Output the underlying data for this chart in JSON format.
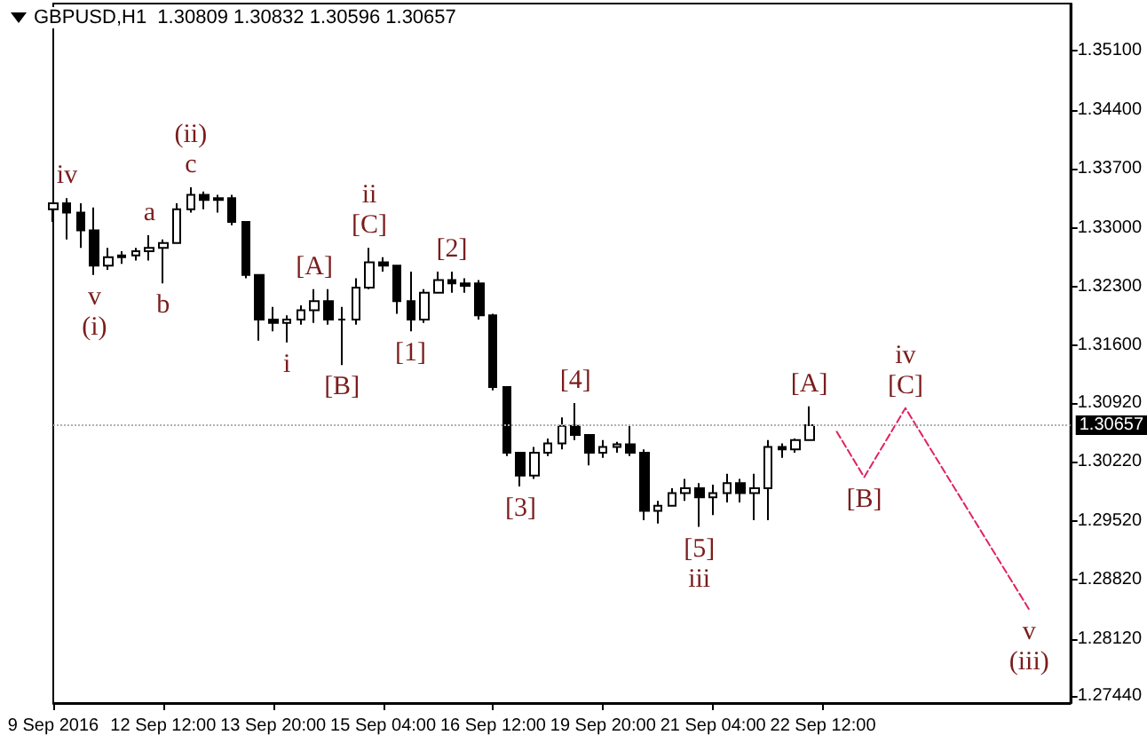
{
  "chart_data": {
    "type": "candlestick",
    "title": "GBPUSD,H1  1.30809 1.30832 1.30596 1.30657",
    "categories": [
      "9 Sep 2016",
      null,
      null,
      null,
      null,
      null,
      null,
      null,
      "12 Sep 12:00",
      null,
      null,
      null,
      null,
      null,
      null,
      null,
      "13 Sep 20:00",
      null,
      null,
      null,
      null,
      null,
      null,
      null,
      "15 Sep 04:00",
      null,
      null,
      null,
      null,
      null,
      null,
      null,
      "16 Sep 12:00",
      null,
      null,
      null,
      null,
      null,
      null,
      null,
      "19 Sep 20:00",
      null,
      null,
      null,
      null,
      null,
      null,
      null,
      "21 Sep 04:00",
      null,
      null,
      null,
      null,
      null,
      null,
      null,
      "22 Sep 12:00",
      null,
      null,
      null,
      null,
      null,
      null,
      null,
      null,
      null,
      null,
      null,
      null,
      null,
      null,
      null,
      null,
      null,
      null
    ],
    "series": [
      {
        "type": "candlestick",
        "color": "#000000",
        "ohlc": [
          [
            1.3322,
            1.3329,
            1.3307,
            1.3329
          ],
          [
            1.3329,
            1.3335,
            1.3286,
            1.3318
          ],
          [
            1.3318,
            1.3329,
            1.3276,
            1.3297
          ],
          [
            1.3297,
            1.3324,
            1.3244,
            1.3255
          ],
          [
            1.3255,
            1.3276,
            1.325,
            1.3265
          ],
          [
            1.3265,
            1.3272,
            1.3257,
            1.3267
          ],
          [
            1.3267,
            1.3276,
            1.3261,
            1.3272
          ],
          [
            1.3272,
            1.3291,
            1.3261,
            1.3276
          ],
          [
            1.3276,
            1.3286,
            1.3234,
            1.3282
          ],
          [
            1.3282,
            1.3329,
            1.3282,
            1.3322
          ],
          [
            1.3322,
            1.3348,
            1.3318,
            1.3339
          ],
          [
            1.3339,
            1.3343,
            1.3322,
            1.3333
          ],
          [
            1.3333,
            1.3339,
            1.3318,
            1.3335
          ],
          [
            1.3335,
            1.3339,
            1.3303,
            1.3307
          ],
          [
            1.3307,
            1.3307,
            1.324,
            1.3244
          ],
          [
            1.3244,
            1.3244,
            1.3166,
            1.3191
          ],
          [
            1.3191,
            1.3206,
            1.3177,
            1.3187
          ],
          [
            1.3187,
            1.3196,
            1.3164,
            1.3191
          ],
          [
            1.3191,
            1.3208,
            1.3185,
            1.3202
          ],
          [
            1.3202,
            1.3227,
            1.3187,
            1.3213
          ],
          [
            1.3213,
            1.3227,
            1.3185,
            1.3191
          ],
          [
            1.3191,
            1.3206,
            1.3137,
            1.3191
          ],
          [
            1.3191,
            1.324,
            1.3185,
            1.3229
          ],
          [
            1.3229,
            1.3276,
            1.3227,
            1.3259
          ],
          [
            1.3259,
            1.3265,
            1.3248,
            1.3255
          ],
          [
            1.3255,
            1.3255,
            1.3198,
            1.3213
          ],
          [
            1.3213,
            1.3248,
            1.3177,
            1.3191
          ],
          [
            1.3191,
            1.3227,
            1.3187,
            1.3223
          ],
          [
            1.3223,
            1.3248,
            1.3223,
            1.3238
          ],
          [
            1.3238,
            1.3248,
            1.3223,
            1.3234
          ],
          [
            1.3234,
            1.324,
            1.3223,
            1.3231
          ],
          [
            1.3234,
            1.3238,
            1.3191,
            1.3196
          ],
          [
            1.3196,
            1.3198,
            1.3107,
            1.3111
          ],
          [
            1.3111,
            1.3111,
            1.3029,
            1.3033
          ],
          [
            1.3033,
            1.3033,
            1.2993,
            1.3006
          ],
          [
            1.3006,
            1.304,
            1.3002,
            1.3033
          ],
          [
            1.3033,
            1.305,
            1.3029,
            1.3044
          ],
          [
            1.3044,
            1.3075,
            1.3037,
            1.3065
          ],
          [
            1.3065,
            1.3092,
            1.3048,
            1.3054
          ],
          [
            1.3054,
            1.3054,
            1.3018,
            1.3033
          ],
          [
            1.3033,
            1.3048,
            1.3027,
            1.304
          ],
          [
            1.304,
            1.3046,
            1.3033,
            1.3043
          ],
          [
            1.3043,
            1.3065,
            1.3029,
            1.3033
          ],
          [
            1.3033,
            1.3037,
            1.2953,
            1.2964
          ],
          [
            1.2964,
            1.2976,
            1.2949,
            1.297
          ],
          [
            1.297,
            1.2991,
            1.297,
            1.2985
          ],
          [
            1.2985,
            1.3002,
            1.2976,
            1.2991
          ],
          [
            1.2991,
            1.2997,
            1.2945,
            1.298
          ],
          [
            1.298,
            1.2995,
            1.2959,
            1.2985
          ],
          [
            1.2985,
            1.3008,
            1.2974,
            1.2997
          ],
          [
            1.2997,
            1.3002,
            1.2974,
            1.2985
          ],
          [
            1.2985,
            1.3008,
            1.2953,
            1.2991
          ],
          [
            1.2991,
            1.3048,
            1.2953,
            1.304
          ],
          [
            1.304,
            1.3044,
            1.3027,
            1.3037
          ],
          [
            1.3037,
            1.305,
            1.3033,
            1.3048
          ],
          [
            1.3048,
            1.3088,
            1.3048,
            1.30657
          ],
          null,
          null,
          null,
          null,
          null,
          null,
          null,
          null,
          null,
          null,
          null,
          null,
          null,
          null,
          null,
          null,
          null,
          null,
          null
        ],
        "value_labels": [
          null,
          "iv",
          null,
          "v\n(i)",
          null,
          null,
          null,
          "a",
          "b",
          null,
          "(ii)\nc",
          null,
          null,
          null,
          null,
          null,
          null,
          "i",
          null,
          "[A]",
          null,
          "[B]",
          null,
          "ii\n[C]",
          null,
          null,
          "[1]",
          null,
          null,
          "[2]",
          null,
          null,
          null,
          null,
          "[3]",
          null,
          null,
          null,
          "[4]",
          null,
          null,
          null,
          null,
          null,
          null,
          null,
          null,
          "[5]\niii",
          null,
          null,
          null,
          null,
          null,
          null,
          null,
          "[A]",
          null,
          null,
          null,
          null,
          null,
          null,
          null,
          null,
          null,
          null,
          null,
          null,
          null,
          null,
          null,
          null,
          null,
          null,
          null
        ]
      },
      {
        "type": "line",
        "color": "#e0245e",
        "line_style": "dashed",
        "values": [
          null,
          null,
          null,
          null,
          null,
          null,
          null,
          null,
          null,
          null,
          null,
          null,
          null,
          null,
          null,
          null,
          null,
          null,
          null,
          null,
          null,
          null,
          null,
          null,
          null,
          null,
          null,
          null,
          null,
          null,
          null,
          null,
          null,
          null,
          null,
          null,
          null,
          null,
          null,
          null,
          null,
          null,
          null,
          null,
          null,
          null,
          null,
          null,
          null,
          null,
          null,
          null,
          null,
          null,
          null,
          null,
          null,
          1.3058,
          null,
          1.3004,
          null,
          null,
          1.3086,
          null,
          null,
          null,
          null,
          null,
          null,
          null,
          null,
          1.2847,
          null,
          null,
          null
        ],
        "value_labels": [
          null,
          null,
          null,
          null,
          null,
          null,
          null,
          null,
          null,
          null,
          null,
          null,
          null,
          null,
          null,
          null,
          null,
          null,
          null,
          null,
          null,
          null,
          null,
          null,
          null,
          null,
          null,
          null,
          null,
          null,
          null,
          null,
          null,
          null,
          null,
          null,
          null,
          null,
          null,
          null,
          null,
          null,
          null,
          null,
          null,
          null,
          null,
          null,
          null,
          null,
          null,
          null,
          null,
          null,
          null,
          null,
          null,
          null,
          null,
          "[B]",
          null,
          null,
          "iv\n[C]",
          null,
          null,
          null,
          null,
          null,
          null,
          null,
          null,
          "v\n(iii)",
          null,
          null,
          null
        ]
      }
    ],
    "ylim": [
      1.2736,
      1.3566
    ],
    "yticks": [
      {
        "value": 1.351,
        "label": "1.35100"
      },
      {
        "value": 1.344,
        "label": "1.34400"
      },
      {
        "value": 1.337,
        "label": "1.33700"
      },
      {
        "value": 1.33,
        "label": "1.33000"
      },
      {
        "value": 1.323,
        "label": "1.32300"
      },
      {
        "value": 1.316,
        "label": "1.31600"
      },
      {
        "value": 1.3092,
        "label": "1.30920"
      },
      {
        "value": 1.3022,
        "label": "1.30220"
      },
      {
        "value": 1.2952,
        "label": "1.29520"
      },
      {
        "value": 1.2882,
        "label": "1.28820"
      },
      {
        "value": 1.2812,
        "label": "1.28120"
      },
      {
        "value": 1.2744,
        "label": "1.27440"
      }
    ],
    "ref_lines": [
      {
        "axis": "y",
        "value": 1.30657,
        "label": "1.30657"
      }
    ]
  }
}
